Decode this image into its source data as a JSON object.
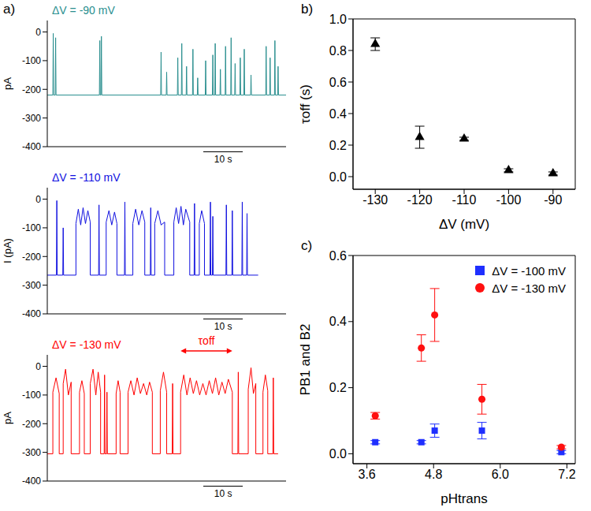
{
  "chart_data": [
    {
      "type": "line",
      "panel_label": "a)",
      "annotation": "ΔV = -90 mV",
      "y_label": "pA",
      "color": "#2a8f8f",
      "tick_labels": "y",
      "xlim": [
        0,
        60
      ],
      "ylim": [
        -400,
        40
      ],
      "yticks": [
        -400,
        -300,
        -200,
        -100,
        0
      ],
      "scale_bar": {
        "length": 10,
        "label": "10 s"
      },
      "x": [
        0,
        1.4,
        1.5,
        1.6,
        2.0,
        2.1,
        2.2,
        13.1,
        13.2,
        13.3,
        13.5,
        13.6,
        13.7,
        28.5,
        28.6,
        28.7,
        29.9,
        30.0,
        30.1,
        32.7,
        32.8,
        32.9,
        33.7,
        33.8,
        33.9,
        34.9,
        35.0,
        35.1,
        36.5,
        36.6,
        36.7,
        37.7,
        37.8,
        37.9,
        39.7,
        39.8,
        39.9,
        41.5,
        41.6,
        41.7,
        42.1,
        42.2,
        42.3,
        43.4,
        43.5,
        43.6,
        44.7,
        44.8,
        44.9,
        46.1,
        46.2,
        46.3,
        47.1,
        47.2,
        47.3,
        48.4,
        48.5,
        48.6,
        49.4,
        49.5,
        49.6,
        51.1,
        51.2,
        51.3,
        54.9,
        55.0,
        55.1,
        55.9,
        56.0,
        56.1,
        57.1,
        57.2,
        57.3,
        57.9,
        58.0,
        58.1,
        60
      ],
      "values": [
        -220,
        -220,
        -5,
        -220,
        -220,
        -20,
        -220,
        -220,
        -30,
        -220,
        -220,
        -15,
        -220,
        -220,
        -70,
        -220,
        -220,
        -140,
        -220,
        -220,
        -90,
        -220,
        -220,
        -40,
        -220,
        -220,
        -120,
        -220,
        -220,
        -60,
        -220,
        -220,
        -160,
        -220,
        -220,
        -100,
        -220,
        -220,
        -80,
        -220,
        -220,
        -40,
        -220,
        -220,
        -130,
        -220,
        -220,
        -50,
        -220,
        -220,
        -20,
        -220,
        -220,
        -110,
        -220,
        -220,
        -90,
        -220,
        -220,
        -60,
        -220,
        -220,
        -150,
        -220,
        -220,
        -50,
        -220,
        -220,
        -90,
        -220,
        -220,
        -30,
        -220,
        -220,
        -120,
        -220,
        -220
      ]
    },
    {
      "type": "line",
      "annotation": "ΔV = -110 mV",
      "y_label": "I (pA)",
      "color": "#1010e0",
      "tick_labels": "y",
      "xlim": [
        0,
        60
      ],
      "ylim": [
        -400,
        40
      ],
      "yticks": [
        -400,
        -300,
        -200,
        -100,
        0
      ],
      "scale_bar": {
        "length": 10,
        "label": "10 s"
      },
      "x": [
        0,
        2.3,
        2.4,
        2.5,
        3.9,
        4.0,
        4.1,
        7.2,
        7.2,
        7.8,
        8.4,
        9.0,
        9.6,
        10.2,
        10.8,
        10.8,
        12.9,
        13.0,
        13.1,
        14.8,
        14.8,
        15.5,
        16.2,
        16.9,
        17.5,
        17.5,
        19.4,
        19.5,
        19.6,
        21.5,
        21.5,
        22.2,
        23.0,
        23.8,
        24.5,
        24.5,
        25.9,
        26.0,
        26.1,
        27.0,
        27.0,
        27.8,
        28.6,
        29.5,
        29.5,
        31.8,
        31.8,
        32.4,
        33.0,
        33.6,
        34.2,
        34.8,
        35.8,
        35.8,
        36.9,
        37.0,
        37.1,
        38.2,
        38.2,
        38.8,
        39.5,
        39.5,
        40.9,
        41.0,
        41.1,
        41.5,
        41.6,
        41.7,
        44.9,
        45.0,
        45.1,
        46.4,
        46.5,
        46.6,
        48.9,
        49.0,
        49.1,
        50.1,
        50.2,
        50.3,
        53.0
      ],
      "values": [
        -265,
        -265,
        -5,
        -265,
        -265,
        -100,
        -265,
        -265,
        -85,
        -35,
        -90,
        -30,
        -85,
        -40,
        -80,
        -265,
        -265,
        -20,
        -265,
        -265,
        -80,
        -40,
        -90,
        -45,
        -85,
        -265,
        -265,
        -10,
        -265,
        -265,
        -85,
        -35,
        -90,
        -40,
        -80,
        -265,
        -265,
        -30,
        -265,
        -265,
        -85,
        -40,
        -90,
        -80,
        -265,
        -265,
        -80,
        -30,
        -85,
        -25,
        -90,
        -35,
        -80,
        -265,
        -265,
        -15,
        -265,
        -265,
        -85,
        -40,
        -85,
        -265,
        -265,
        -10,
        -265,
        -265,
        -60,
        -265,
        -265,
        -20,
        -265,
        -265,
        -40,
        -265,
        -265,
        -10,
        -265,
        -265,
        -50,
        -265,
        -265
      ]
    },
    {
      "type": "line",
      "annotation": "ΔV = -130 mV",
      "y_label": "pA",
      "color": "#ff0000",
      "tick_labels": "y",
      "xlim": [
        0,
        60
      ],
      "ylim": [
        -400,
        40
      ],
      "yticks": [
        -400,
        -300,
        -200,
        -100,
        0
      ],
      "scale_bar": {
        "length": 10,
        "label": "10 s"
      },
      "interval_annotation": {
        "text": "τoff",
        "x": [
          33.5,
          46.5
        ]
      },
      "x": [
        0,
        1.4,
        1.4,
        2.2,
        3.0,
        3.0,
        4.0,
        4.0,
        4.6,
        5.3,
        6.0,
        6.0,
        8.1,
        8.1,
        8.7,
        9.3,
        9.3,
        10.8,
        10.8,
        11.5,
        12.2,
        12.8,
        13.4,
        13.4,
        14.3,
        14.4,
        14.5,
        14.9,
        15.0,
        15.1,
        17.3,
        17.3,
        17.8,
        18.3,
        18.3,
        20.3,
        20.3,
        21.0,
        21.8,
        22.6,
        23.4,
        24.2,
        25.0,
        25.7,
        26.4,
        26.4,
        28.4,
        28.4,
        29.2,
        30.0,
        30.0,
        31.4,
        31.5,
        31.6,
        33.5,
        33.5,
        34.3,
        35.1,
        35.9,
        36.7,
        37.5,
        38.3,
        39.1,
        39.9,
        40.7,
        41.5,
        42.3,
        43.1,
        43.9,
        44.7,
        45.5,
        46.5,
        46.5,
        47.9,
        48.0,
        48.1,
        50.5,
        50.5,
        51.2,
        51.8,
        52.4,
        52.4,
        54.2,
        54.2,
        54.8,
        55.4,
        55.4,
        56.7,
        56.8,
        56.9,
        58.0
      ],
      "values": [
        -305,
        -305,
        -90,
        -40,
        -95,
        -305,
        -305,
        -60,
        -10,
        -100,
        -55,
        -305,
        -305,
        -90,
        -50,
        -95,
        -305,
        -305,
        -60,
        -10,
        -100,
        -20,
        -90,
        -305,
        -305,
        -30,
        -305,
        -305,
        -90,
        -305,
        -305,
        -95,
        -50,
        -90,
        -305,
        -305,
        -90,
        -50,
        -100,
        -40,
        -95,
        -60,
        -100,
        -55,
        -90,
        -305,
        -305,
        -85,
        -20,
        -90,
        -305,
        -305,
        -60,
        -305,
        -305,
        -90,
        -30,
        -100,
        -40,
        -95,
        -50,
        -100,
        -60,
        -100,
        -50,
        -95,
        -40,
        -100,
        -55,
        -95,
        -45,
        -90,
        -305,
        -305,
        -20,
        -305,
        -305,
        -80,
        -5,
        -95,
        -60,
        -305,
        -305,
        -90,
        -30,
        -85,
        -305,
        -305,
        -40,
        -305,
        -305
      ]
    },
    {
      "type": "scatter",
      "panel_label": "b)",
      "x_label": "ΔV (mV)",
      "y_label": "τoff (s)",
      "color": "#000000",
      "marker": "triangle",
      "x": [
        -130,
        -120,
        -110,
        -100,
        -90
      ],
      "values": [
        0.84,
        0.25,
        0.24,
        0.04,
        0.02
      ],
      "errors": [
        0.04,
        0.07,
        0.01,
        0.01,
        0.01
      ],
      "xlim": [
        -135,
        -85
      ],
      "xticks": [
        -130,
        -120,
        -110,
        -100,
        -90
      ],
      "ylim": [
        -0.08,
        1.0
      ],
      "yticks": [
        {
          "value": 0,
          "label": "0.0"
        },
        0.2,
        0.4,
        0.6,
        0.8,
        {
          "value": 1,
          "label": "1.0"
        }
      ]
    },
    {
      "type": "scatter",
      "panel_label": "c)",
      "x_label": "pHtrans",
      "y_label": "PB1 and B2",
      "legend": "upper right",
      "x": [
        3.75,
        4.58,
        4.82,
        5.67,
        7.1
      ],
      "series": [
        {
          "name": "ΔV = -100 mV",
          "color": "#1f2fff",
          "marker": "square",
          "values": [
            0.035,
            0.035,
            0.07,
            0.07,
            0.005
          ],
          "errors": [
            0.005,
            0.005,
            0.02,
            0.025,
            0.005
          ]
        },
        {
          "name": "ΔV = -130 mV",
          "color": "#ff1010",
          "marker": "circle",
          "values": [
            0.115,
            0.32,
            0.42,
            0.165,
            0.02
          ],
          "errors": [
            0.01,
            0.04,
            0.08,
            0.045,
            0.005
          ]
        }
      ],
      "xlim": [
        3.35,
        7.35
      ],
      "xticks": [
        3.6,
        4.8,
        {
          "value": 6,
          "label": "6.0"
        },
        7.2
      ],
      "ylim": [
        -0.03,
        0.6
      ],
      "yticks": [
        {
          "value": 0,
          "label": "0.0"
        },
        0.2,
        0.4,
        0.6
      ]
    }
  ]
}
